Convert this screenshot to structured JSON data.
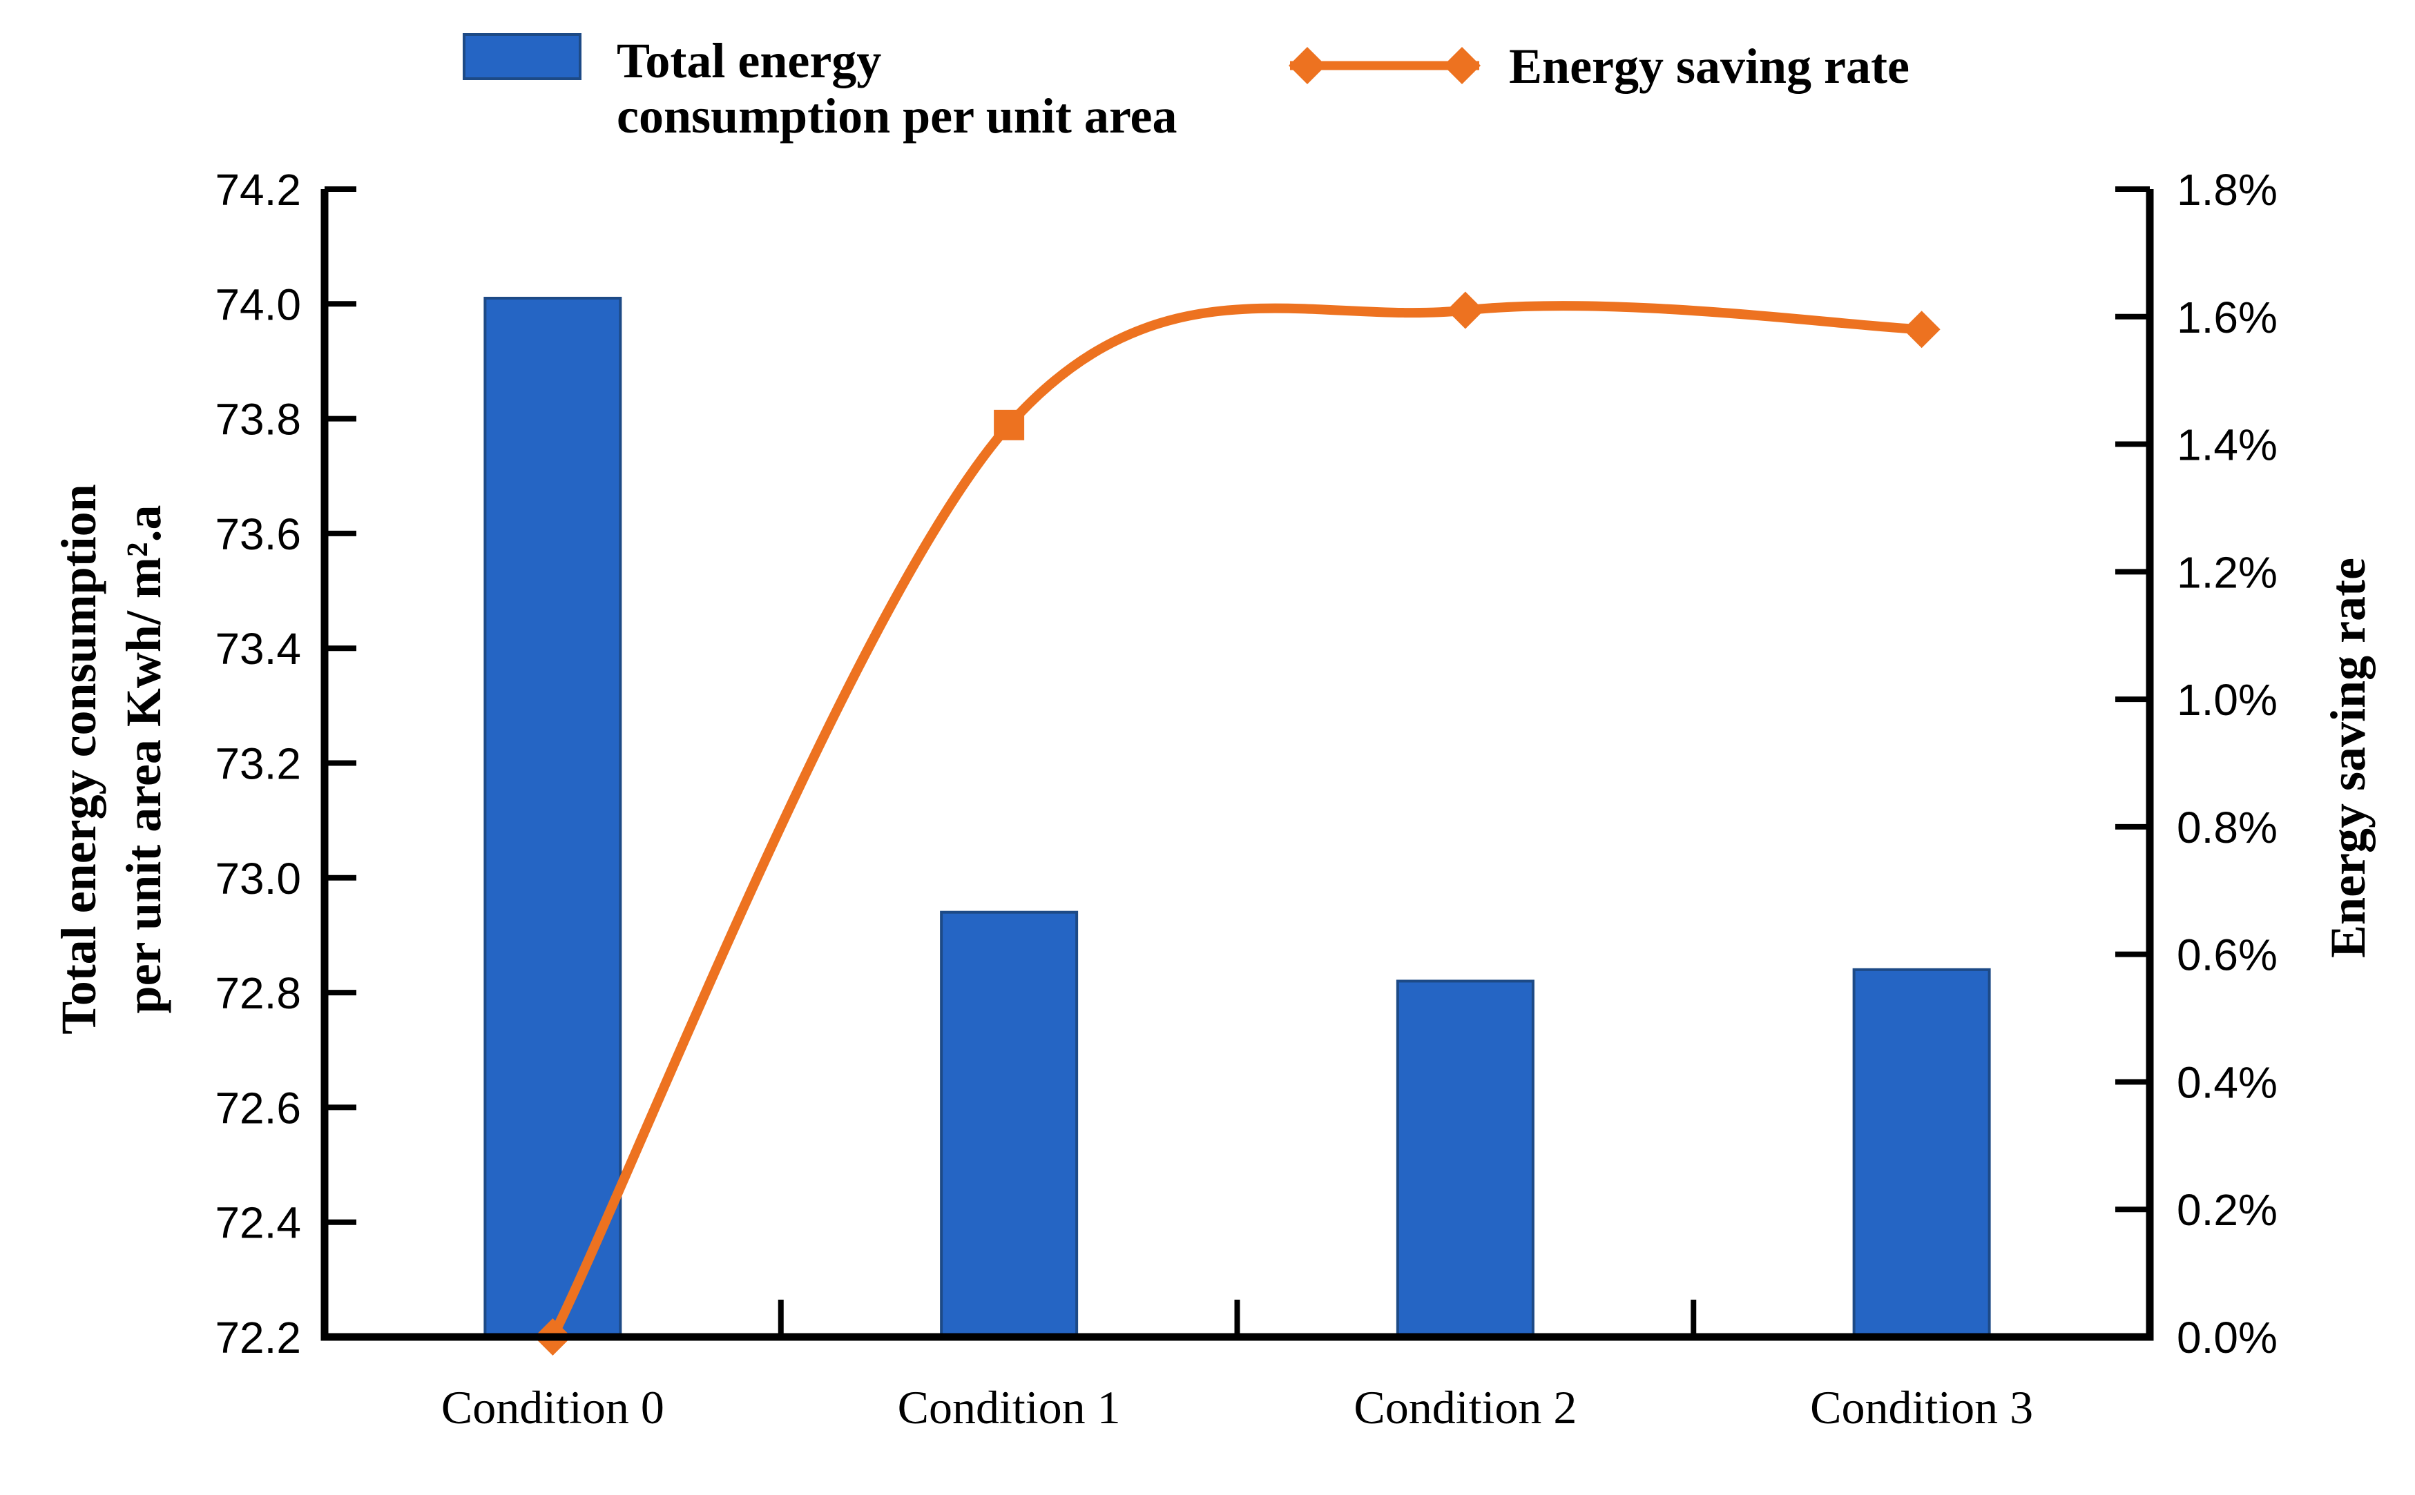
{
  "chart_data": {
    "type": "bar",
    "subtype": "combo-bar-line",
    "title": "",
    "categories": [
      "Condition 0",
      "Condition 1",
      "Condition 2",
      "Condition 3"
    ],
    "series": [
      {
        "name": "Total energy consumption per unit area",
        "type": "bar",
        "axis": "left",
        "values": [
          74.01,
          72.94,
          72.82,
          72.84
        ],
        "color": "#2565c4",
        "edge_color": "#1d4a86"
      },
      {
        "name": "Energy saving rate",
        "type": "line",
        "axis": "right",
        "values_percent": [
          0.0,
          1.43,
          1.61,
          1.58
        ],
        "color": "#ed7220",
        "marker_shapes": [
          "diamond",
          "square",
          "diamond",
          "diamond"
        ],
        "smoothed": true
      }
    ],
    "left_axis": {
      "title": "Total energy consumption per unit area Kwh/ m².a",
      "title_lines": [
        "Total energy consumption",
        "per unit area Kwh/ m².a"
      ],
      "min": 72.2,
      "max": 74.2,
      "tick_step": 0.2,
      "tick_labels": [
        "74.2",
        "74.0",
        "73.8",
        "73.6",
        "73.4",
        "73.2",
        "73.0",
        "72.8",
        "72.6",
        "72.4",
        "72.2"
      ]
    },
    "right_axis": {
      "title": "Energy saving rate",
      "min": 0.0,
      "max": 1.8,
      "tick_step": 0.2,
      "tick_labels": [
        "1.8%",
        "1.6%",
        "1.4%",
        "1.2%",
        "1.0%",
        "0.8%",
        "0.6%",
        "0.4%",
        "0.2%",
        "0.0%"
      ]
    },
    "x_axis": {
      "tick_labels": [
        "Condition 0",
        "Condition 1",
        "Condition 2",
        "Condition 3"
      ]
    },
    "legend": [
      {
        "label": "Total energy consumption per unit area",
        "lines": [
          "Total energy",
          "consumption per unit area"
        ],
        "swatch": "bar",
        "color": "#2565c4"
      },
      {
        "label": "Energy saving rate",
        "lines": [
          "Energy saving rate"
        ],
        "swatch": "line-diamond",
        "color": "#ed7220"
      }
    ],
    "grid": false,
    "plot_border": "left-bottom-right",
    "legend_position": "top"
  }
}
